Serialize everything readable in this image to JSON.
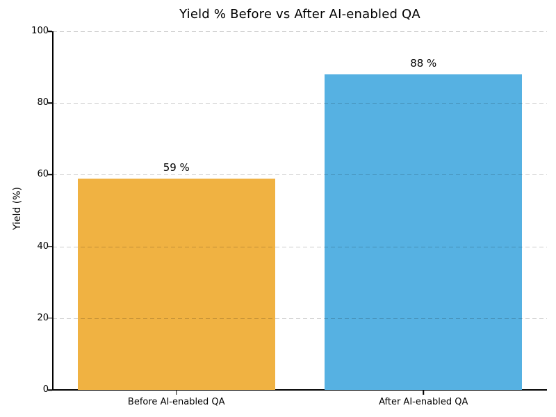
{
  "figure": {
    "background": "#FFFFFF",
    "text_color": "#000000",
    "grid_color": "#CCCCCC",
    "spine_color": "#000000"
  },
  "chart_data": {
    "type": "bar",
    "title": "Yield % Before vs After AI-enabled QA",
    "xlabel": "",
    "ylabel": "Yield (%)",
    "categories": [
      "Before AI-enabled QA",
      "After AI-enabled QA"
    ],
    "values": [
      59,
      88
    ],
    "value_labels": [
      "59 %",
      "88 %"
    ],
    "bar_colors": [
      "#F0B242",
      "#56B1E2"
    ],
    "ylim": [
      0,
      100
    ],
    "yticks": [
      0,
      20,
      40,
      60,
      80,
      100
    ],
    "grid": "horizontal-dashed",
    "grid_on": true,
    "legend": "none",
    "bar_width_fraction": 0.8
  }
}
